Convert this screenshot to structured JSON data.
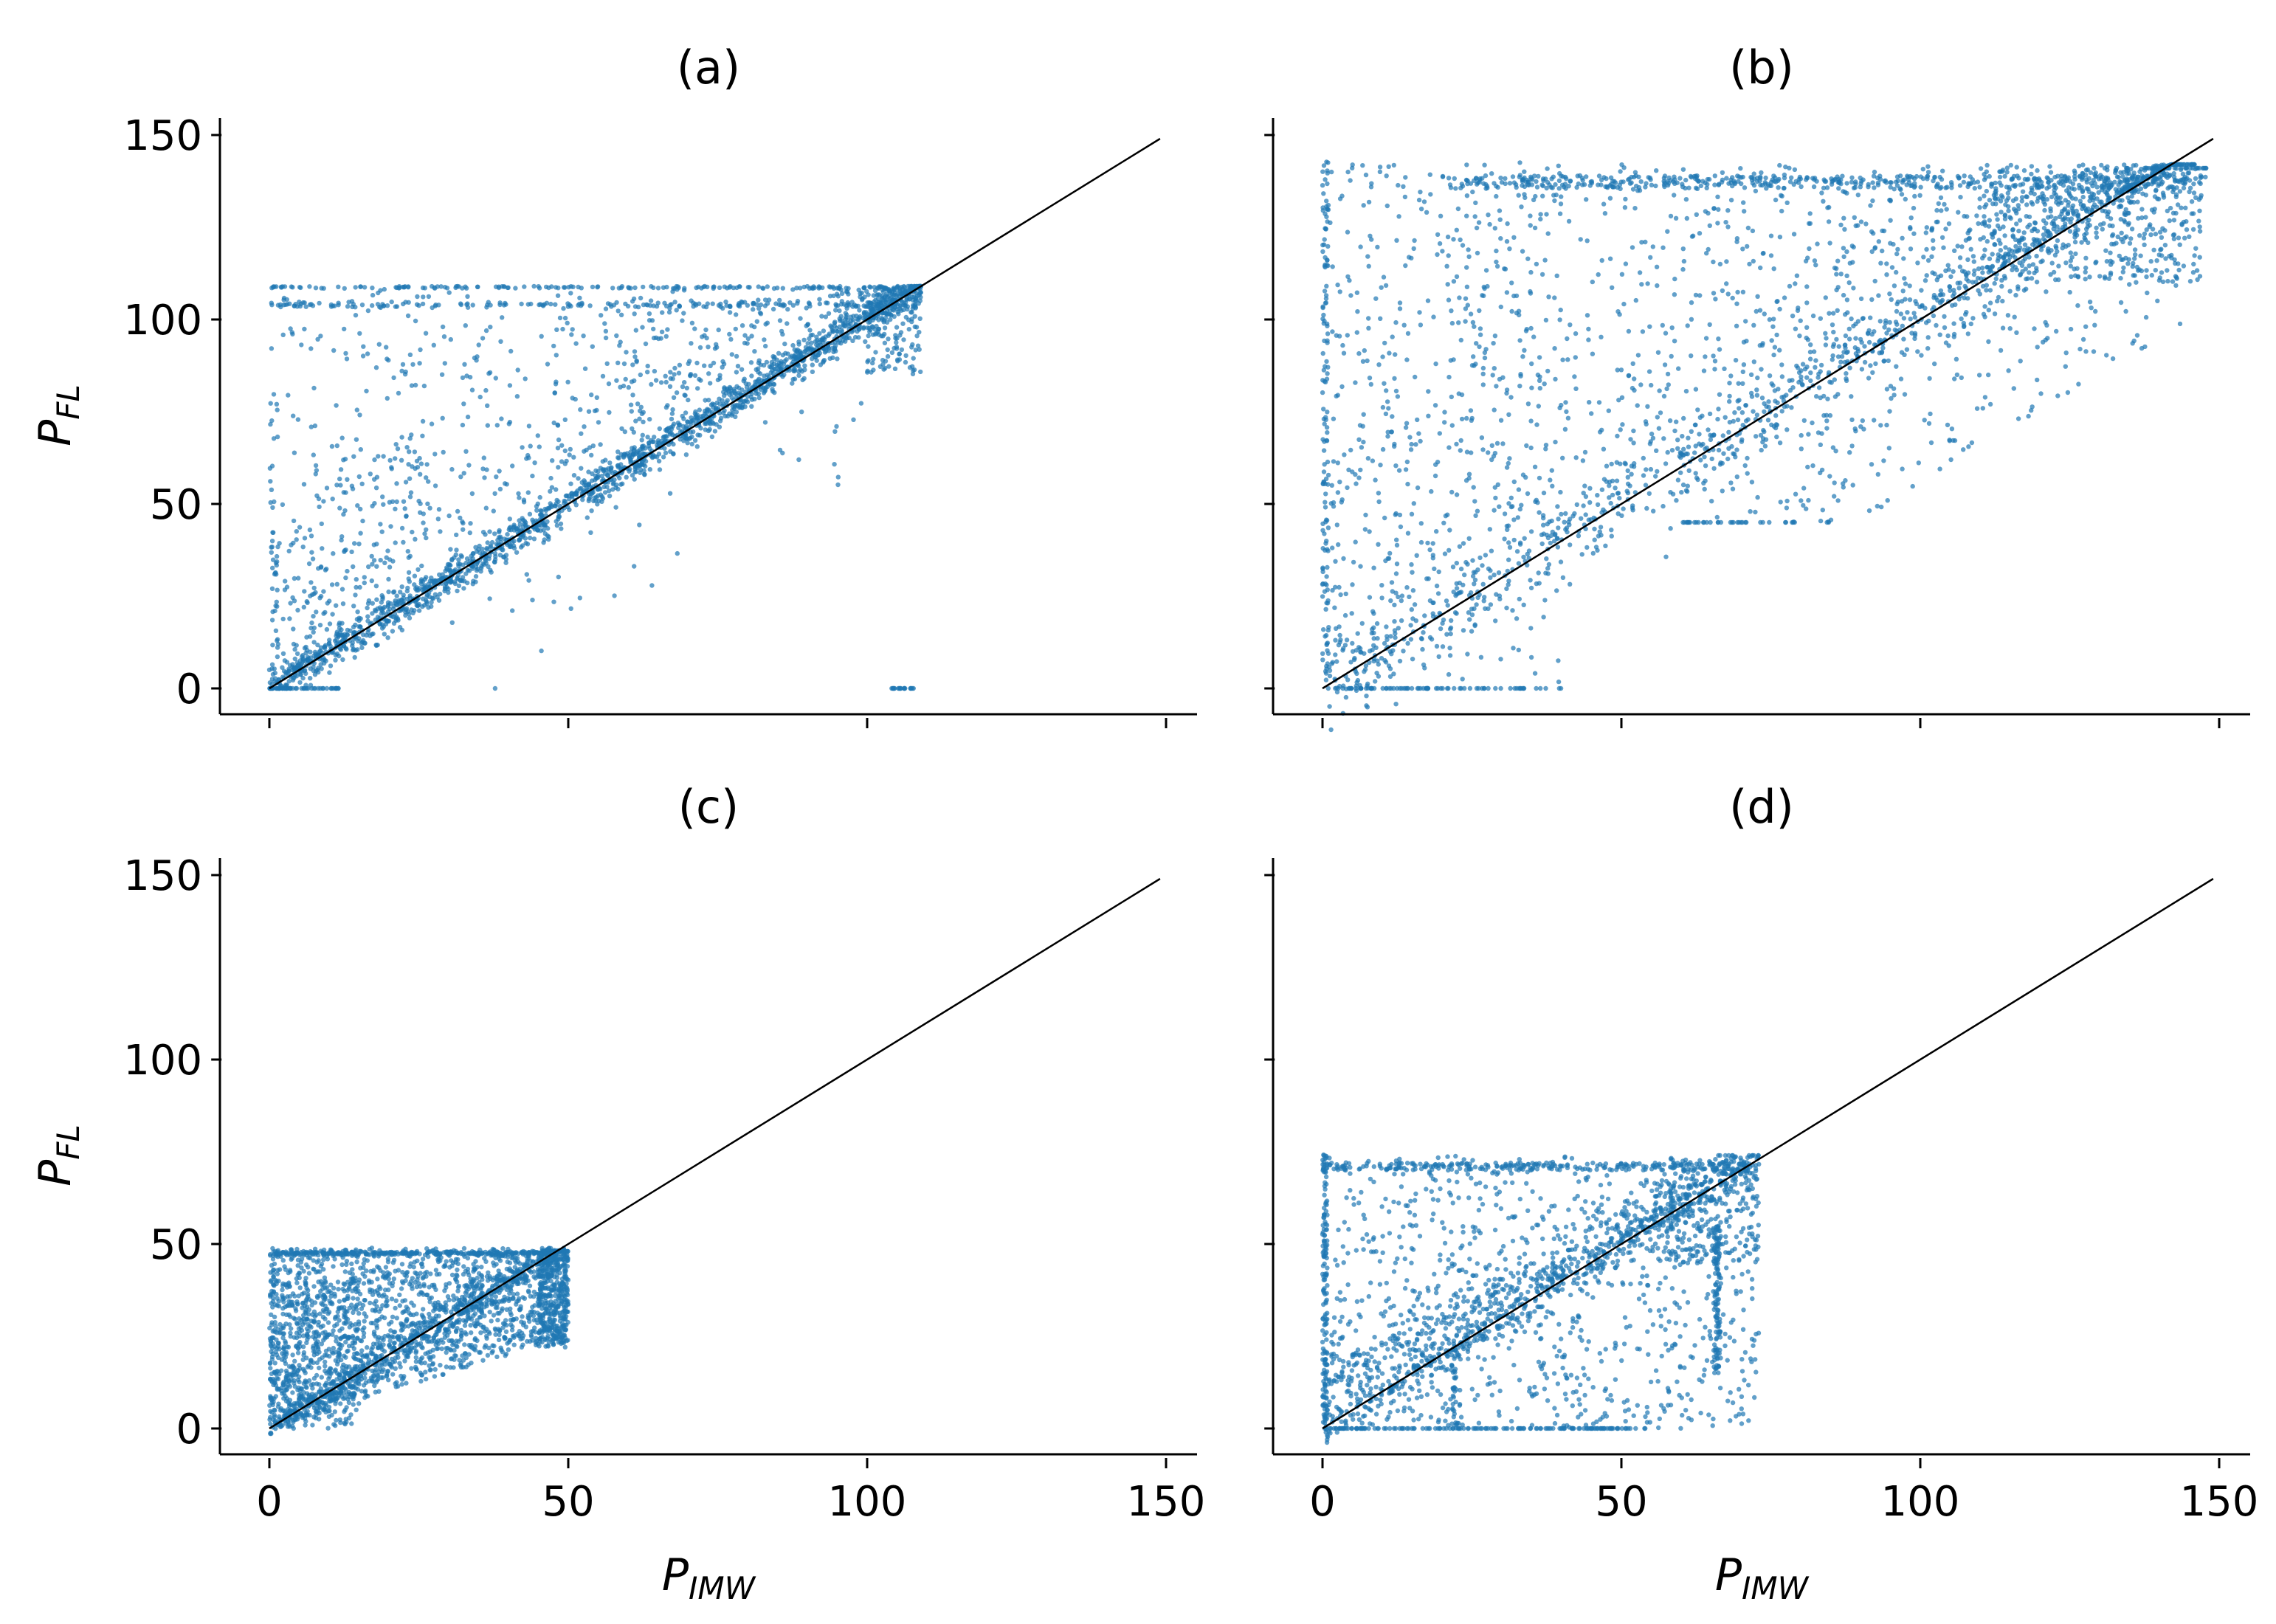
{
  "figure": {
    "xlabel_main": "P",
    "xlabel_sub": "IMW",
    "ylabel_main": "P",
    "ylabel_sub": "FL"
  },
  "colors": {
    "points": "#1f77b4",
    "diagonal": "#000000",
    "axes": "#000000"
  },
  "chart_data": [
    {
      "id": "a",
      "type": "scatter",
      "title": "(a)",
      "xlabel": "",
      "ylabel": "P_FL",
      "xlim": [
        -8,
        157
      ],
      "ylim": [
        -8,
        157
      ],
      "xticks": [
        0,
        50,
        100,
        150
      ],
      "yticks": [
        0,
        50,
        100,
        150
      ],
      "xtick_labels": [
        "",
        "",
        "",
        ""
      ],
      "ytick_labels": [
        "0",
        "50",
        "100",
        "150"
      ],
      "reference_line": {
        "x": [
          0,
          149
        ],
        "y": [
          0,
          149
        ]
      },
      "pmax": 109,
      "points_description": "dense along y=x up to ~109; ceiling band at ~104 and ~109; zeros near x=0 and x≈104-108; vertical band at x≈107",
      "seed": 11
    },
    {
      "id": "b",
      "type": "scatter",
      "title": "(b)",
      "xlabel": "",
      "ylabel": "",
      "xlim": [
        -8,
        157
      ],
      "ylim": [
        -8,
        157
      ],
      "xticks": [
        0,
        50,
        100,
        150
      ],
      "yticks": [
        0,
        50,
        100,
        150
      ],
      "xtick_labels": [
        "",
        "",
        "",
        ""
      ],
      "ytick_labels": [
        "",
        "",
        "",
        ""
      ],
      "reference_line": {
        "x": [
          0,
          149
        ],
        "y": [
          0,
          149
        ]
      },
      "pmax": 140,
      "points_description": "broad scatter above y=x up to ~140; ceiling band at ~139; vertical line at x=0; dense cluster near (140,140)",
      "seed": 23
    },
    {
      "id": "c",
      "type": "scatter",
      "title": "(c)",
      "xlabel": "P_IMW",
      "ylabel": "P_FL",
      "xlim": [
        -8,
        157
      ],
      "ylim": [
        -8,
        157
      ],
      "xticks": [
        0,
        50,
        100,
        150
      ],
      "yticks": [
        0,
        50,
        100,
        150
      ],
      "xtick_labels": [
        "0",
        "50",
        "100",
        "150"
      ],
      "ytick_labels": [
        "0",
        "50",
        "100",
        "150"
      ],
      "reference_line": {
        "x": [
          0,
          149
        ],
        "y": [
          0,
          149
        ]
      },
      "pmax": 49,
      "points_description": "dense region 0-50 above y=x, ceiling at ~47-48",
      "seed": 37
    },
    {
      "id": "d",
      "type": "scatter",
      "title": "(d)",
      "xlabel": "P_IMW",
      "ylabel": "",
      "xlim": [
        -8,
        157
      ],
      "ylim": [
        -8,
        157
      ],
      "xticks": [
        0,
        50,
        100,
        150
      ],
      "yticks": [
        0,
        50,
        100,
        150
      ],
      "xtick_labels": [
        "0",
        "50",
        "100",
        "150"
      ],
      "ytick_labels": [
        "",
        "",
        "",
        ""
      ],
      "reference_line": {
        "x": [
          0,
          149
        ],
        "y": [
          0,
          149
        ]
      },
      "pmax": 73,
      "points_description": "scatter 0-73 with ceiling ~72, vertical line at x=0 and x≈66, zeros row up to x≈55",
      "seed": 53
    }
  ]
}
